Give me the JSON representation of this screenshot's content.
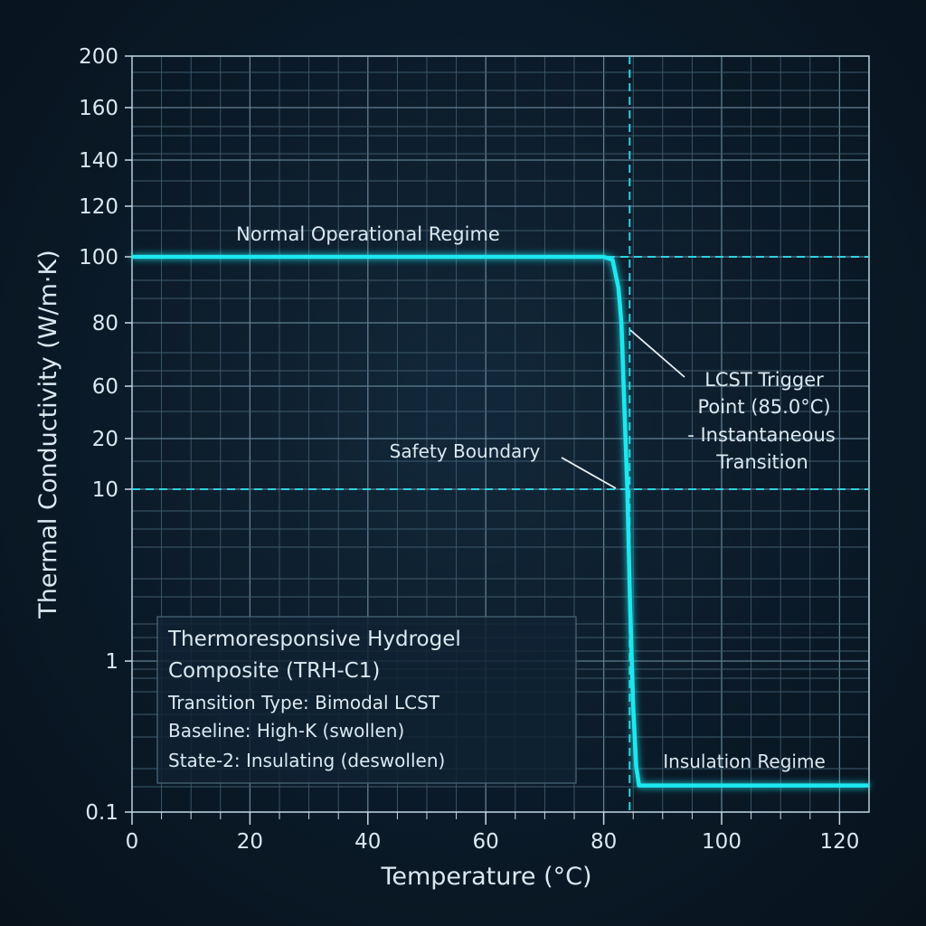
{
  "chart_data": {
    "type": "line",
    "title": "",
    "xlabel": "Temperature (°C)",
    "ylabel": "Thermal Conductivity (W/m·K)",
    "xlim": [
      0,
      125
    ],
    "ylim": [
      0.1,
      200
    ],
    "x_ticks": [
      "0",
      "20",
      "40",
      "60",
      "80",
      "100",
      "120"
    ],
    "x_tick_values": [
      0,
      20,
      40,
      60,
      80,
      100,
      120
    ],
    "y_ticks": [
      "0.1",
      "1",
      "10",
      "20",
      "60",
      "80",
      "100",
      "120",
      "140",
      "160",
      "200"
    ],
    "y_tick_values": [
      0.1,
      1,
      10,
      20,
      60,
      80,
      100,
      120,
      140,
      160,
      200
    ],
    "grid": true,
    "series": [
      {
        "color": "#1ee8f0",
        "x": [
          0,
          80,
          81.5,
          82.5,
          83,
          83.5,
          84,
          84.5,
          85,
          85.5,
          86,
          125
        ],
        "y": [
          100,
          100,
          99,
          90,
          80,
          40,
          10,
          2,
          0.5,
          0.2,
          0.15,
          0.15
        ]
      }
    ],
    "reference_lines": {
      "horizontal": [
        100,
        10
      ],
      "vertical": [
        84.4
      ],
      "color": "#2fd3e0"
    },
    "annotations": {
      "normal": "Normal Operational Regime",
      "safety": "Safety Boundary",
      "lcst": [
        "LCST Trigger",
        "Point (85.0°C)",
        "- Instantaneous",
        "Transition"
      ],
      "insulation": "Insulation Regime"
    },
    "legend_box": {
      "title": [
        "Thermoresponsive Hydrogel",
        "Composite (TRH-C1)"
      ],
      "lines": [
        "Transition Type: Bimodal LCST",
        "Baseline: High-K (swollen)",
        "State-2: Insulating (deswollen)"
      ]
    }
  }
}
